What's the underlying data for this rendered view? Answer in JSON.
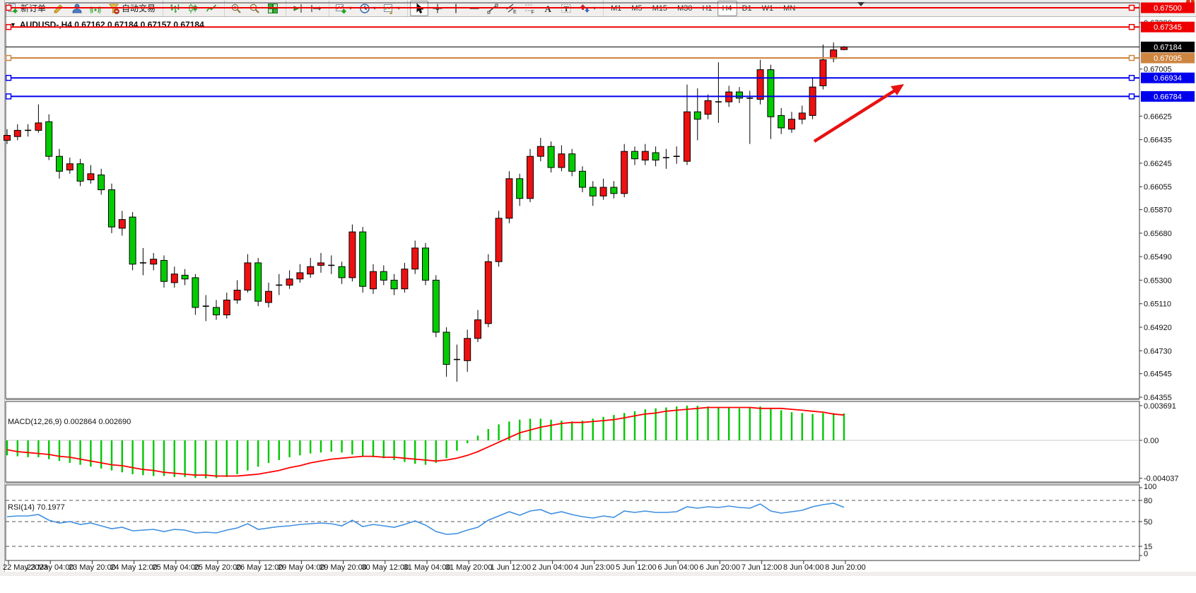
{
  "toolbar": {
    "groups": [
      {
        "name": "trade",
        "items": [
          {
            "icon": "new-order-icon",
            "label": "新订单",
            "name": "new-order-button"
          },
          {
            "icon": "crayon-icon",
            "name": "styler-button"
          },
          {
            "icon": "community-icon",
            "name": "community-button"
          },
          {
            "icon": "signal-icon",
            "name": "signals-button"
          },
          {
            "icon": "auto-trading-icon",
            "label": "自动交易",
            "name": "auto-trading-button"
          }
        ]
      },
      {
        "name": "chart-type",
        "items": [
          {
            "icon": "ohlc-bars-icon",
            "name": "bar-chart-button"
          },
          {
            "icon": "candlestick-icon",
            "name": "candlestick-chart-button"
          },
          {
            "icon": "line-chart-icon",
            "name": "line-chart-button"
          }
        ]
      },
      {
        "name": "zoom",
        "items": [
          {
            "icon": "zoom-in-icon",
            "name": "zoom-in-button"
          },
          {
            "icon": "zoom-out-icon",
            "name": "zoom-out-button"
          },
          {
            "icon": "tile-windows-icon",
            "name": "tile-windows-button"
          }
        ]
      },
      {
        "name": "shift",
        "items": [
          {
            "icon": "chart-shift-end-icon",
            "name": "auto-scroll-button"
          },
          {
            "icon": "chart-shift-icon",
            "name": "chart-shift-button"
          }
        ]
      },
      {
        "name": "objects-quick",
        "items": [
          {
            "icon": "indicators-icon",
            "dropdown": true,
            "name": "indicators-button"
          },
          {
            "icon": "clock-icon",
            "dropdown": true,
            "name": "periods-button"
          },
          {
            "icon": "template-icon",
            "dropdown": true,
            "name": "templates-button"
          }
        ]
      },
      {
        "name": "drawing",
        "items": [
          {
            "icon": "cursor-icon",
            "active": true,
            "name": "cursor-button"
          },
          {
            "icon": "crosshair-icon",
            "name": "crosshair-button"
          },
          {
            "icon": "vertical-line-icon",
            "name": "vertical-line-button"
          },
          {
            "icon": "horizontal-line-icon",
            "name": "horizontal-line-button"
          },
          {
            "icon": "trendline-icon",
            "name": "trendline-button"
          },
          {
            "icon": "channel-icon",
            "name": "equidistant-channel-button"
          },
          {
            "icon": "fibonacci-icon",
            "name": "fibonacci-button"
          },
          {
            "icon": "text-icon",
            "name": "text-button"
          },
          {
            "icon": "text-label-icon",
            "name": "text-label-button"
          },
          {
            "icon": "arrows-icon",
            "dropdown": true,
            "name": "arrows-button"
          }
        ]
      }
    ],
    "timeframes": [
      "M1",
      "M5",
      "M15",
      "M30",
      "H1",
      "H4",
      "D1",
      "W1",
      "MN"
    ],
    "active_timeframe": "H4",
    "search_icon": "search-icon",
    "chat_badge_count": "1"
  },
  "chart": {
    "title": "AUDUSD-,H4  0.67162 0.67184 0.67157 0.67184",
    "symbol": "AUDUSD-",
    "period": "H4",
    "current_price": "0.67184",
    "price_axis_ticks": [
      "0.67380",
      "0.67005",
      "0.66625",
      "0.66435",
      "0.66245",
      "0.66055",
      "0.65870",
      "0.65680",
      "0.65490",
      "0.65300",
      "0.65110",
      "0.64920",
      "0.64730",
      "0.64545",
      "0.64355"
    ],
    "levels": [
      {
        "label": "0.67500",
        "price": 0.675,
        "color": "#ee0000",
        "width": 2,
        "handles": true,
        "name": "resistance-line-1"
      },
      {
        "label": "0.67345",
        "price": 0.67345,
        "color": "#ee0000",
        "width": 2,
        "handles": true,
        "name": "resistance-line-2"
      },
      {
        "label": "0.67184",
        "price": 0.67184,
        "color": "#000000",
        "width": 1,
        "handles": false,
        "name": "bid-price-line"
      },
      {
        "label": "0.67095",
        "price": 0.67095,
        "color": "#cd8540",
        "width": 2,
        "handles": true,
        "name": "orange-level-line"
      },
      {
        "label": "0.66934",
        "price": 0.66934,
        "color": "#0000ee",
        "width": 2,
        "handles": true,
        "name": "support-line-1"
      },
      {
        "label": "0.66784",
        "price": 0.66784,
        "color": "#0000ee",
        "width": 2,
        "handles": true,
        "name": "support-line-2"
      }
    ],
    "arrow": {
      "from": [
        1152,
        224
      ],
      "to": [
        1266,
        152
      ],
      "color": "#e81212"
    },
    "colors": {
      "bull": "#ee1111",
      "bear": "#00cc00",
      "wick": "#000000",
      "macd_hist": "#00c800",
      "macd_signal": "#ff0000",
      "rsi_line": "#3f8fe0"
    },
    "chart_data": {
      "type": "candlestick",
      "ohlc": [
        [
          0.6643,
          0.6652,
          0.664,
          0.6647
        ],
        [
          0.6646,
          0.6656,
          0.6643,
          0.6651
        ],
        [
          0.6651,
          0.6656,
          0.6646,
          0.6651
        ],
        [
          0.6651,
          0.6672,
          0.6649,
          0.6657
        ],
        [
          0.6658,
          0.6664,
          0.6627,
          0.663
        ],
        [
          0.663,
          0.6636,
          0.6612,
          0.6618
        ],
        [
          0.6619,
          0.6629,
          0.6616,
          0.6624
        ],
        [
          0.6624,
          0.6628,
          0.6606,
          0.661
        ],
        [
          0.6611,
          0.6623,
          0.6608,
          0.6616
        ],
        [
          0.6615,
          0.662,
          0.6599,
          0.6603
        ],
        [
          0.6603,
          0.6608,
          0.6568,
          0.6573
        ],
        [
          0.6572,
          0.6586,
          0.6566,
          0.6579
        ],
        [
          0.6581,
          0.6585,
          0.6538,
          0.6543
        ],
        [
          0.6544,
          0.6556,
          0.6534,
          0.6544
        ],
        [
          0.6543,
          0.6552,
          0.6538,
          0.6547
        ],
        [
          0.6546,
          0.655,
          0.6524,
          0.6529
        ],
        [
          0.6528,
          0.6541,
          0.6524,
          0.6535
        ],
        [
          0.6534,
          0.6539,
          0.6526,
          0.6531
        ],
        [
          0.6532,
          0.6535,
          0.6502,
          0.6508
        ],
        [
          0.6508,
          0.6518,
          0.6497,
          0.6509
        ],
        [
          0.6508,
          0.6514,
          0.6498,
          0.6502
        ],
        [
          0.6502,
          0.652,
          0.6499,
          0.6514
        ],
        [
          0.6514,
          0.653,
          0.6511,
          0.6522
        ],
        [
          0.6522,
          0.6551,
          0.652,
          0.6544
        ],
        [
          0.6544,
          0.6548,
          0.6509,
          0.6513
        ],
        [
          0.6512,
          0.6528,
          0.6508,
          0.6521
        ],
        [
          0.6526,
          0.6535,
          0.6518,
          0.6526
        ],
        [
          0.6526,
          0.6538,
          0.6523,
          0.6531
        ],
        [
          0.6531,
          0.6543,
          0.6528,
          0.6536
        ],
        [
          0.6535,
          0.6548,
          0.6532,
          0.6541
        ],
        [
          0.6542,
          0.6552,
          0.6536,
          0.6544
        ],
        [
          0.6543,
          0.655,
          0.6535,
          0.6542
        ],
        [
          0.6541,
          0.6545,
          0.6527,
          0.6532
        ],
        [
          0.6532,
          0.6575,
          0.6529,
          0.6569
        ],
        [
          0.6569,
          0.6573,
          0.652,
          0.6525
        ],
        [
          0.6523,
          0.6543,
          0.6519,
          0.6537
        ],
        [
          0.6537,
          0.6542,
          0.6526,
          0.653
        ],
        [
          0.653,
          0.6535,
          0.6518,
          0.6523
        ],
        [
          0.6523,
          0.6544,
          0.652,
          0.6539
        ],
        [
          0.6539,
          0.6562,
          0.6535,
          0.6556
        ],
        [
          0.6556,
          0.656,
          0.6526,
          0.653
        ],
        [
          0.653,
          0.6534,
          0.6484,
          0.6488
        ],
        [
          0.6488,
          0.6492,
          0.6452,
          0.6462
        ],
        [
          0.6465,
          0.6478,
          0.6448,
          0.6466
        ],
        [
          0.6465,
          0.649,
          0.6456,
          0.6483
        ],
        [
          0.6483,
          0.6506,
          0.648,
          0.6498
        ],
        [
          0.6495,
          0.6551,
          0.6492,
          0.6545
        ],
        [
          0.6545,
          0.6586,
          0.6541,
          0.658
        ],
        [
          0.658,
          0.6618,
          0.6576,
          0.6612
        ],
        [
          0.6612,
          0.6616,
          0.659,
          0.6596
        ],
        [
          0.6596,
          0.6636,
          0.6593,
          0.663
        ],
        [
          0.663,
          0.6645,
          0.6626,
          0.6638
        ],
        [
          0.6638,
          0.6642,
          0.6617,
          0.6621
        ],
        [
          0.6621,
          0.6639,
          0.6618,
          0.6632
        ],
        [
          0.6632,
          0.6636,
          0.6614,
          0.6618
        ],
        [
          0.6618,
          0.6622,
          0.6601,
          0.6605
        ],
        [
          0.6605,
          0.661,
          0.659,
          0.6598
        ],
        [
          0.6598,
          0.6612,
          0.6595,
          0.6605
        ],
        [
          0.6605,
          0.661,
          0.6596,
          0.66
        ],
        [
          0.66,
          0.664,
          0.6597,
          0.6634
        ],
        [
          0.6634,
          0.6638,
          0.6623,
          0.6628
        ],
        [
          0.6627,
          0.664,
          0.6623,
          0.6634
        ],
        [
          0.6633,
          0.6638,
          0.6622,
          0.6627
        ],
        [
          0.6628,
          0.6636,
          0.662,
          0.6629
        ],
        [
          0.663,
          0.6638,
          0.6624,
          0.663
        ],
        [
          0.6626,
          0.6688,
          0.6623,
          0.6666
        ],
        [
          0.6666,
          0.6685,
          0.6643,
          0.666
        ],
        [
          0.6664,
          0.668,
          0.666,
          0.6675
        ],
        [
          0.6674,
          0.6706,
          0.6657,
          0.6674
        ],
        [
          0.6674,
          0.6687,
          0.667,
          0.6682
        ],
        [
          0.6682,
          0.6686,
          0.6673,
          0.6677
        ],
        [
          0.6678,
          0.6683,
          0.664,
          0.6677
        ],
        [
          0.6676,
          0.6708,
          0.6672,
          0.67
        ],
        [
          0.67,
          0.6704,
          0.6644,
          0.6662
        ],
        [
          0.6663,
          0.6669,
          0.6648,
          0.6653
        ],
        [
          0.6652,
          0.6666,
          0.6649,
          0.666
        ],
        [
          0.666,
          0.6671,
          0.6656,
          0.6665
        ],
        [
          0.6663,
          0.6694,
          0.666,
          0.6686
        ],
        [
          0.6687,
          0.67203,
          0.6684,
          0.6708
        ],
        [
          0.6709,
          0.6722,
          0.6706,
          0.6716
        ],
        [
          0.67162,
          0.6719,
          0.67157,
          0.67184
        ]
      ]
    }
  },
  "macd": {
    "label": "MACD(12,26,9) 0.002864 0.002690",
    "axis_ticks": [
      "0.003691",
      "0.00",
      "-0.004037"
    ],
    "histogram": [
      -0.0016,
      -0.0017,
      -0.0018,
      -0.0018,
      -0.002,
      -0.0022,
      -0.0024,
      -0.0026,
      -0.0028,
      -0.003,
      -0.0032,
      -0.0034,
      -0.0036,
      -0.0037,
      -0.0038,
      -0.0038,
      -0.0039,
      -0.0039,
      -0.004,
      -0.00404,
      -0.004,
      -0.0039,
      -0.0036,
      -0.0032,
      -0.0028,
      -0.0024,
      -0.0021,
      -0.0018,
      -0.0016,
      -0.0014,
      -0.0013,
      -0.0012,
      -0.0013,
      -0.0015,
      -0.0017,
      -0.0018,
      -0.0019,
      -0.0021,
      -0.0023,
      -0.0025,
      -0.0026,
      -0.0024,
      -0.0019,
      -0.0011,
      -0.0003,
      0.0005,
      0.0012,
      0.0017,
      0.002,
      0.0022,
      0.0023,
      0.0023,
      0.0022,
      0.0021,
      0.002,
      0.0021,
      0.0023,
      0.0025,
      0.0027,
      0.0029,
      0.0031,
      0.0033,
      0.0034,
      0.0035,
      0.0036,
      0.00369,
      0.00368,
      0.0036,
      0.0035,
      0.0035,
      0.0034,
      0.0035,
      0.0036,
      0.0034,
      0.0032,
      0.003,
      0.0029,
      0.0028,
      0.0029,
      0.0029,
      0.002864
    ],
    "signal": [
      -0.001,
      -0.0012,
      -0.0013,
      -0.0014,
      -0.0015,
      -0.0017,
      -0.0018,
      -0.002,
      -0.0022,
      -0.0024,
      -0.0026,
      -0.0027,
      -0.0029,
      -0.0031,
      -0.0032,
      -0.0034,
      -0.0035,
      -0.0036,
      -0.0037,
      -0.0037,
      -0.0038,
      -0.0038,
      -0.0038,
      -0.0037,
      -0.0036,
      -0.0034,
      -0.0032,
      -0.0029,
      -0.0027,
      -0.0024,
      -0.0022,
      -0.002,
      -0.0019,
      -0.0018,
      -0.0017,
      -0.0017,
      -0.0018,
      -0.0018,
      -0.0019,
      -0.002,
      -0.0021,
      -0.0022,
      -0.0021,
      -0.0019,
      -0.0016,
      -0.0012,
      -0.0007,
      -0.0002,
      0.0003,
      0.0008,
      0.0011,
      0.0014,
      0.0016,
      0.0018,
      0.0019,
      0.0019,
      0.002,
      0.0021,
      0.0022,
      0.0024,
      0.0026,
      0.0028,
      0.0029,
      0.0031,
      0.0032,
      0.0033,
      0.0034,
      0.0035,
      0.0035,
      0.0035,
      0.0035,
      0.0035,
      0.0034,
      0.0034,
      0.0034,
      0.0033,
      0.0032,
      0.0031,
      0.003,
      0.0028,
      0.00269
    ]
  },
  "rsi": {
    "label": "RSI(14) 70.1977",
    "axis_ticks": [
      "100",
      "80",
      "50",
      "15",
      "0"
    ],
    "dashed_levels": [
      80,
      50,
      15
    ],
    "series": [
      57,
      58,
      58,
      60,
      52,
      48,
      50,
      46,
      48,
      44,
      40,
      42,
      37,
      38,
      39,
      36,
      39,
      38,
      34,
      35,
      34,
      38,
      41,
      47,
      39,
      41,
      43,
      44,
      46,
      47,
      48,
      47,
      44,
      52,
      43,
      46,
      44,
      42,
      46,
      51,
      45,
      36,
      32,
      33,
      38,
      42,
      52,
      58,
      64,
      59,
      65,
      67,
      61,
      64,
      60,
      57,
      55,
      58,
      56,
      65,
      63,
      65,
      63,
      63,
      64,
      71,
      69,
      71,
      70,
      72,
      70,
      69,
      75,
      65,
      62,
      64,
      66,
      71,
      74,
      76,
      70.1977
    ]
  },
  "time_axis": {
    "labels": [
      "22 May 2023",
      "23 May 04:00",
      "23 May 20:00",
      "24 May 12:00",
      "25 May 04:00",
      "25 May 20:00",
      "26 May 12:00",
      "29 May 04:00",
      "29 May 20:00",
      "30 May 12:00",
      "31 May 04:00",
      "31 May 20:00",
      "1 Jun 12:00",
      "2 Jun 04:00",
      "4 Jun 23:00",
      "5 Jun 12:00",
      "6 Jun 04:00",
      "6 Jun 20:00",
      "7 Jun 12:00",
      "8 Jun 04:00",
      "8 Jun 20:00"
    ]
  }
}
